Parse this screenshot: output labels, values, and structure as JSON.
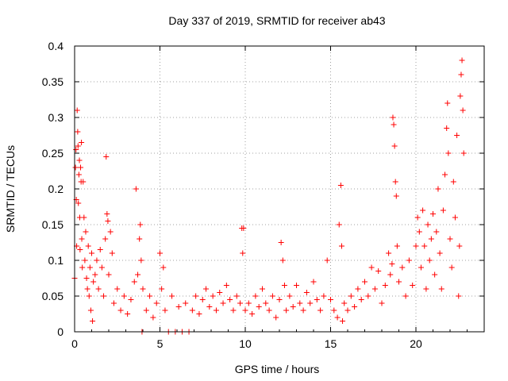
{
  "chart_data": {
    "type": "scatter",
    "title": "Day 337 of 2019, SRMTID for receiver ab43",
    "xlabel": "GPS time / hours",
    "ylabel": "SRMTID / TECUs",
    "xlim": [
      0,
      24
    ],
    "ylim": [
      0,
      0.4
    ],
    "xticks": [
      0,
      5,
      10,
      15,
      20
    ],
    "yticks": [
      0,
      0.05,
      0.1,
      0.15,
      0.2,
      0.25,
      0.3,
      0.35,
      0.4
    ],
    "xtick_labels": [
      "0",
      "5",
      "10",
      "15",
      "20"
    ],
    "ytick_labels": [
      "0",
      "0.05",
      "0.1",
      "0.15",
      "0.2",
      "0.25",
      "0.3",
      "0.35",
      "0.4"
    ],
    "grid": true,
    "marker": "plus",
    "color": "#ff0000",
    "series": [
      {
        "name": "SRMTID",
        "points": [
          [
            0.0,
            0.075
          ],
          [
            0.05,
            0.23
          ],
          [
            0.08,
            0.255
          ],
          [
            0.1,
            0.185
          ],
          [
            0.12,
            0.12
          ],
          [
            0.15,
            0.31
          ],
          [
            0.18,
            0.28
          ],
          [
            0.2,
            0.26
          ],
          [
            0.22,
            0.18
          ],
          [
            0.25,
            0.22
          ],
          [
            0.28,
            0.24
          ],
          [
            0.3,
            0.16
          ],
          [
            0.32,
            0.115
          ],
          [
            0.35,
            0.23
          ],
          [
            0.38,
            0.21
          ],
          [
            0.4,
            0.265
          ],
          [
            0.42,
            0.13
          ],
          [
            0.45,
            0.09
          ],
          [
            0.5,
            0.21
          ],
          [
            0.55,
            0.16
          ],
          [
            0.6,
            0.1
          ],
          [
            0.65,
            0.14
          ],
          [
            0.7,
            0.075
          ],
          [
            0.75,
            0.06
          ],
          [
            0.8,
            0.12
          ],
          [
            0.85,
            0.05
          ],
          [
            0.9,
            0.09
          ],
          [
            0.95,
            0.03
          ],
          [
            1.0,
            0.11
          ],
          [
            1.05,
            0.015
          ],
          [
            1.1,
            0.07
          ],
          [
            1.2,
            0.08
          ],
          [
            1.3,
            0.1
          ],
          [
            1.4,
            0.06
          ],
          [
            1.5,
            0.115
          ],
          [
            1.6,
            0.09
          ],
          [
            1.7,
            0.05
          ],
          [
            1.8,
            0.13
          ],
          [
            1.85,
            0.245
          ],
          [
            1.9,
            0.165
          ],
          [
            1.95,
            0.155
          ],
          [
            2.0,
            0.08
          ],
          [
            2.1,
            0.14
          ],
          [
            2.2,
            0.11
          ],
          [
            2.3,
            0.04
          ],
          [
            2.5,
            0.06
          ],
          [
            2.7,
            0.03
          ],
          [
            2.9,
            0.05
          ],
          [
            3.1,
            0.025
          ],
          [
            3.3,
            0.045
          ],
          [
            3.5,
            0.07
          ],
          [
            3.6,
            0.2
          ],
          [
            3.7,
            0.08
          ],
          [
            3.8,
            0.13
          ],
          [
            3.85,
            0.15
          ],
          [
            3.9,
            0.1
          ],
          [
            3.95,
            0.0
          ],
          [
            4.0,
            0.06
          ],
          [
            4.2,
            0.03
          ],
          [
            4.4,
            0.05
          ],
          [
            4.6,
            0.02
          ],
          [
            4.8,
            0.04
          ],
          [
            5.0,
            0.11
          ],
          [
            5.1,
            0.06
          ],
          [
            5.2,
            0.09
          ],
          [
            5.3,
            0.03
          ],
          [
            5.5,
            0.0
          ],
          [
            5.7,
            0.05
          ],
          [
            5.9,
            0.0
          ],
          [
            6.1,
            0.035
          ],
          [
            6.3,
            0.0
          ],
          [
            6.5,
            0.04
          ],
          [
            6.7,
            0.0
          ],
          [
            6.9,
            0.03
          ],
          [
            7.1,
            0.05
          ],
          [
            7.3,
            0.025
          ],
          [
            7.5,
            0.045
          ],
          [
            7.7,
            0.06
          ],
          [
            7.9,
            0.035
          ],
          [
            8.1,
            0.05
          ],
          [
            8.3,
            0.03
          ],
          [
            8.5,
            0.055
          ],
          [
            8.7,
            0.04
          ],
          [
            8.9,
            0.065
          ],
          [
            9.1,
            0.045
          ],
          [
            9.3,
            0.03
          ],
          [
            9.5,
            0.05
          ],
          [
            9.7,
            0.04
          ],
          [
            9.8,
            0.145
          ],
          [
            9.85,
            0.11
          ],
          [
            9.9,
            0.145
          ],
          [
            10.0,
            0.03
          ],
          [
            10.2,
            0.04
          ],
          [
            10.4,
            0.025
          ],
          [
            10.6,
            0.05
          ],
          [
            10.8,
            0.035
          ],
          [
            11.0,
            0.06
          ],
          [
            11.2,
            0.04
          ],
          [
            11.4,
            0.03
          ],
          [
            11.6,
            0.05
          ],
          [
            11.8,
            0.02
          ],
          [
            12.0,
            0.045
          ],
          [
            12.1,
            0.125
          ],
          [
            12.2,
            0.1
          ],
          [
            12.3,
            0.065
          ],
          [
            12.4,
            0.03
          ],
          [
            12.6,
            0.05
          ],
          [
            12.8,
            0.035
          ],
          [
            13.0,
            0.065
          ],
          [
            13.2,
            0.04
          ],
          [
            13.4,
            0.03
          ],
          [
            13.6,
            0.055
          ],
          [
            13.8,
            0.04
          ],
          [
            14.0,
            0.07
          ],
          [
            14.2,
            0.045
          ],
          [
            14.4,
            0.03
          ],
          [
            14.6,
            0.05
          ],
          [
            14.8,
            0.1
          ],
          [
            15.0,
            0.045
          ],
          [
            15.2,
            0.03
          ],
          [
            15.4,
            0.02
          ],
          [
            15.5,
            0.15
          ],
          [
            15.6,
            0.205
          ],
          [
            15.65,
            0.12
          ],
          [
            15.7,
            0.015
          ],
          [
            15.8,
            0.04
          ],
          [
            16.0,
            0.03
          ],
          [
            16.2,
            0.05
          ],
          [
            16.4,
            0.035
          ],
          [
            16.6,
            0.06
          ],
          [
            16.8,
            0.045
          ],
          [
            17.0,
            0.07
          ],
          [
            17.2,
            0.05
          ],
          [
            17.4,
            0.09
          ],
          [
            17.6,
            0.06
          ],
          [
            17.8,
            0.085
          ],
          [
            18.0,
            0.04
          ],
          [
            18.2,
            0.065
          ],
          [
            18.4,
            0.11
          ],
          [
            18.5,
            0.08
          ],
          [
            18.6,
            0.095
          ],
          [
            18.65,
            0.3
          ],
          [
            18.7,
            0.29
          ],
          [
            18.75,
            0.26
          ],
          [
            18.8,
            0.21
          ],
          [
            18.85,
            0.19
          ],
          [
            18.9,
            0.12
          ],
          [
            19.0,
            0.07
          ],
          [
            19.2,
            0.09
          ],
          [
            19.4,
            0.05
          ],
          [
            19.6,
            0.1
          ],
          [
            19.8,
            0.065
          ],
          [
            20.0,
            0.12
          ],
          [
            20.1,
            0.16
          ],
          [
            20.2,
            0.14
          ],
          [
            20.3,
            0.09
          ],
          [
            20.4,
            0.17
          ],
          [
            20.5,
            0.12
          ],
          [
            20.6,
            0.06
          ],
          [
            20.7,
            0.15
          ],
          [
            20.8,
            0.1
          ],
          [
            20.9,
            0.13
          ],
          [
            21.0,
            0.165
          ],
          [
            21.1,
            0.08
          ],
          [
            21.2,
            0.14
          ],
          [
            21.3,
            0.2
          ],
          [
            21.4,
            0.11
          ],
          [
            21.5,
            0.06
          ],
          [
            21.6,
            0.17
          ],
          [
            21.7,
            0.22
          ],
          [
            21.8,
            0.285
          ],
          [
            21.85,
            0.32
          ],
          [
            21.9,
            0.25
          ],
          [
            22.0,
            0.13
          ],
          [
            22.1,
            0.09
          ],
          [
            22.2,
            0.21
          ],
          [
            22.3,
            0.16
          ],
          [
            22.4,
            0.275
          ],
          [
            22.5,
            0.05
          ],
          [
            22.55,
            0.12
          ],
          [
            22.6,
            0.33
          ],
          [
            22.65,
            0.36
          ],
          [
            22.7,
            0.38
          ],
          [
            22.75,
            0.31
          ],
          [
            22.8,
            0.25
          ]
        ]
      }
    ]
  }
}
